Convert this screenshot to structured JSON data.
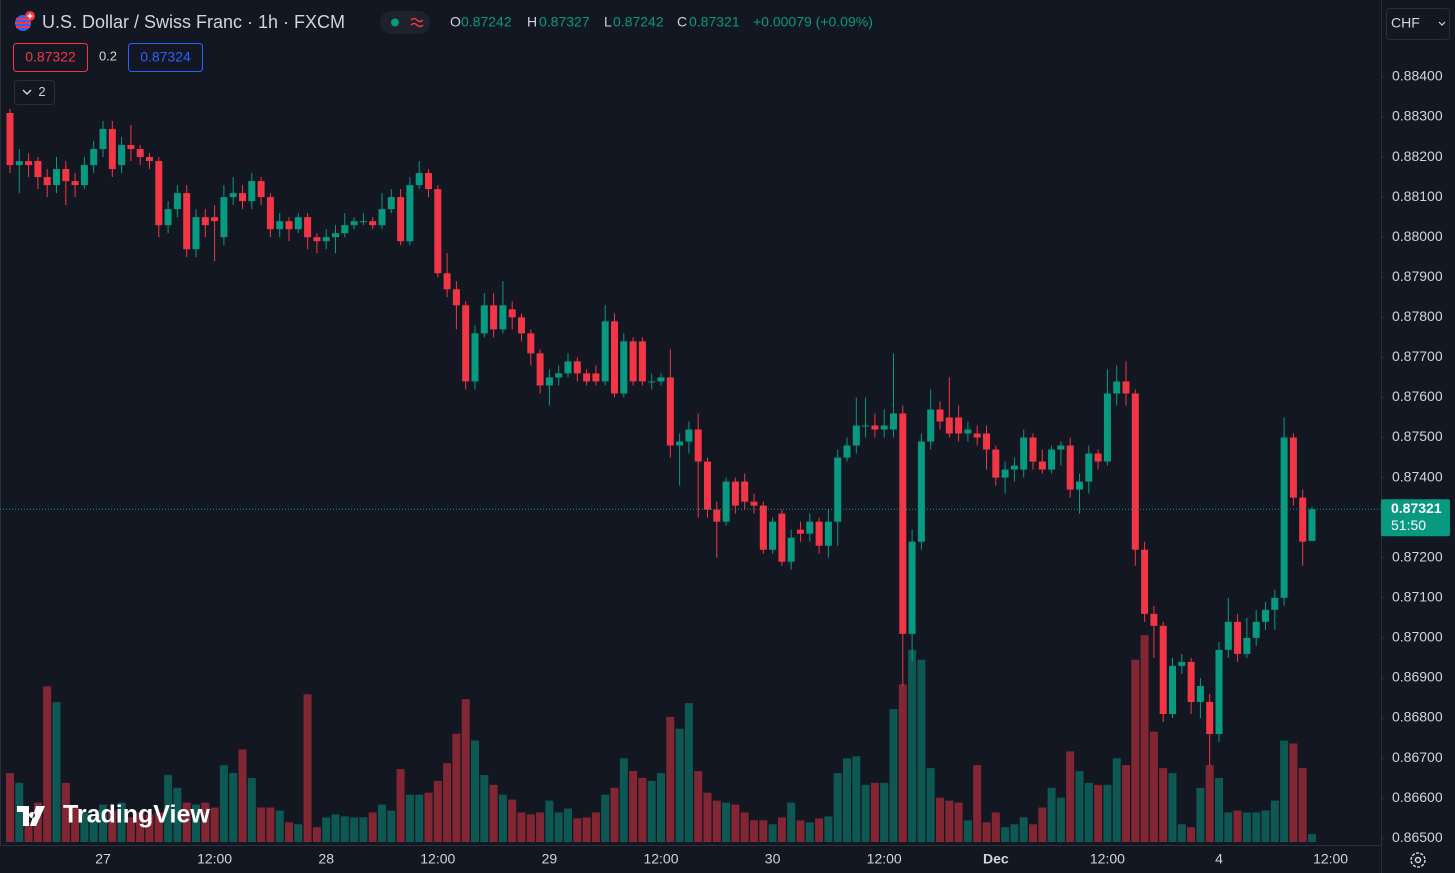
{
  "header": {
    "symbol": "U.S. Dollar / Swiss Franc · 1h · FXCM",
    "ohlc_labels": [
      "O",
      "H",
      "L",
      "C"
    ],
    "change": "+0.00079 (+0.09%)",
    "bid": "0.87322",
    "spread": "0.2",
    "ask": "0.87324",
    "indicators_count": "2",
    "currency": "CHF",
    "countdown": "51:50",
    "logo": "TradingView"
  },
  "chart_data": {
    "type": "candlestick",
    "categories": [
      null,
      null,
      null,
      null,
      null,
      null,
      null,
      null,
      null,
      null,
      "27",
      null,
      null,
      null,
      null,
      null,
      null,
      null,
      null,
      null,
      null,
      null,
      "12:00",
      null,
      null,
      null,
      null,
      null,
      null,
      null,
      null,
      null,
      null,
      null,
      "28",
      null,
      null,
      null,
      null,
      null,
      null,
      null,
      null,
      null,
      null,
      null,
      "12:00",
      null,
      null,
      null,
      null,
      null,
      null,
      null,
      null,
      null,
      null,
      null,
      "29",
      null,
      null,
      null,
      null,
      null,
      null,
      null,
      null,
      null,
      null,
      null,
      "12:00",
      null,
      null,
      null,
      null,
      null,
      null,
      null,
      null,
      null,
      null,
      null,
      "30",
      null,
      null,
      null,
      null,
      null,
      null,
      null,
      null,
      null,
      null,
      null,
      "12:00",
      null,
      null,
      null,
      null,
      null,
      null,
      null,
      null,
      null,
      null,
      null,
      "Dec",
      null,
      null,
      null,
      null,
      null,
      null,
      null,
      null,
      null,
      null,
      null,
      "12:00",
      null,
      null,
      null,
      null,
      null,
      null,
      null,
      null,
      null,
      null,
      null,
      "4",
      null,
      null,
      null,
      null,
      null,
      null,
      null,
      null,
      null,
      null,
      null,
      "12:00"
    ],
    "open": [
      0.8831,
      0.8818,
      0.8819,
      0.8819,
      0.8815,
      0.8813,
      0.8817,
      0.8814,
      0.8813,
      0.8818,
      0.8822,
      0.8827,
      0.8818,
      0.8823,
      0.8822,
      0.882,
      0.8819,
      0.8803,
      0.8807,
      0.8811,
      0.8797,
      0.8805,
      0.8805,
      0.88,
      0.881,
      0.8811,
      0.8809,
      0.8814,
      0.881,
      0.8802,
      0.8804,
      0.8802,
      0.8805,
      0.88,
      0.8799,
      0.88,
      0.8801,
      0.8803,
      0.8804,
      0.8804,
      0.8803,
      0.8807,
      0.881,
      0.8799,
      0.8813,
      0.8816,
      0.8812,
      0.8791,
      0.8787,
      0.8783,
      0.8764,
      0.8776,
      0.8783,
      0.8777,
      0.8782,
      0.878,
      0.8776,
      0.8771,
      0.8763,
      0.8765,
      0.8766,
      0.8769,
      0.8766,
      0.8766,
      0.8764,
      0.8779,
      0.8761,
      0.8774,
      0.8774,
      0.8764,
      0.8764,
      0.8765,
      0.8748,
      0.8749,
      0.8752,
      0.8744,
      0.8732,
      0.8729,
      0.8739,
      0.8739,
      0.8734,
      0.8733,
      0.8722,
      0.8731,
      0.8719,
      0.8727,
      0.8726,
      0.8729,
      0.8723,
      0.8729,
      0.8745,
      0.8748,
      0.8753,
      0.8753,
      0.8752,
      0.8752,
      0.8756,
      0.8701,
      0.8724,
      0.8749,
      0.8757,
      0.8755,
      0.8755,
      0.8751,
      0.8751,
      0.8751,
      0.8747,
      0.874,
      0.8742,
      0.8742,
      0.875,
      0.8744,
      0.8742,
      0.8747,
      0.8748,
      0.8737,
      0.8739,
      0.8746,
      0.8744,
      0.8761,
      0.8764,
      0.8761,
      0.8722,
      0.8706,
      0.8703,
      0.8681,
      0.8693,
      0.8694,
      0.8684,
      0.8684,
      0.8676,
      0.8697,
      0.8704,
      0.8696,
      0.87,
      0.8704,
      0.8707,
      0.871,
      0.875,
      0.8735,
      0.87242,
      null,
      null
    ],
    "high": [
      0.8832,
      0.8822,
      0.8821,
      0.882,
      0.8817,
      0.882,
      0.8819,
      0.8816,
      0.882,
      0.8824,
      0.8829,
      0.8829,
      0.8825,
      0.8828,
      0.8823,
      0.8821,
      0.882,
      0.8809,
      0.8813,
      0.8813,
      0.8807,
      0.8807,
      0.8808,
      0.8813,
      0.8815,
      0.8813,
      0.8816,
      0.8815,
      0.8811,
      0.8806,
      0.8805,
      0.8806,
      0.8806,
      0.8801,
      0.8802,
      0.8803,
      0.8806,
      0.8805,
      0.8806,
      0.8805,
      0.8811,
      0.8812,
      0.8812,
      0.8815,
      0.8819,
      0.8817,
      0.8813,
      0.8796,
      0.8789,
      0.8784,
      0.8778,
      0.8786,
      0.8786,
      0.8789,
      0.8784,
      0.8781,
      0.8777,
      0.8772,
      0.8767,
      0.8768,
      0.8771,
      0.877,
      0.8767,
      0.8768,
      0.8783,
      0.8781,
      0.8776,
      0.8775,
      0.8775,
      0.8766,
      0.8766,
      0.8772,
      0.8751,
      0.8754,
      0.8756,
      0.8745,
      0.8734,
      0.874,
      0.874,
      0.8741,
      0.8736,
      0.8734,
      0.873,
      0.8732,
      0.8727,
      0.8729,
      0.8731,
      0.873,
      0.8732,
      0.8747,
      0.875,
      0.876,
      0.876,
      0.8756,
      0.8757,
      0.8771,
      0.8758,
      0.8727,
      0.8751,
      0.8762,
      0.8759,
      0.8765,
      0.8758,
      0.8754,
      0.8753,
      0.8753,
      0.8748,
      0.8744,
      0.8745,
      0.8752,
      0.8751,
      0.8747,
      0.8748,
      0.8749,
      0.875,
      0.8741,
      0.8748,
      0.8747,
      0.8767,
      0.8768,
      0.8769,
      0.8762,
      0.8724,
      0.8708,
      0.8704,
      0.8695,
      0.8696,
      0.8695,
      0.869,
      0.8686,
      0.8699,
      0.871,
      0.8706,
      0.8705,
      0.8707,
      0.8709,
      0.8712,
      0.8755,
      0.8751,
      0.8737,
      0.87327,
      null,
      null
    ],
    "low": [
      0.8816,
      0.8811,
      0.8815,
      0.8812,
      0.881,
      0.8811,
      0.8808,
      0.881,
      0.8812,
      0.8816,
      0.882,
      0.8815,
      0.8816,
      0.8819,
      0.8818,
      0.8817,
      0.88,
      0.8801,
      0.8805,
      0.8795,
      0.8795,
      0.88,
      0.8794,
      0.8798,
      0.8808,
      0.8807,
      0.8807,
      0.8808,
      0.88,
      0.88,
      0.8799,
      0.8801,
      0.8797,
      0.8796,
      0.8797,
      0.8796,
      0.88,
      0.8802,
      0.8803,
      0.8802,
      0.8802,
      0.8806,
      0.8798,
      0.8798,
      0.8812,
      0.881,
      0.879,
      0.8785,
      0.8777,
      0.8762,
      0.8762,
      0.8775,
      0.8775,
      0.8776,
      0.8777,
      0.8774,
      0.8768,
      0.8761,
      0.8758,
      0.8763,
      0.8765,
      0.8764,
      0.8763,
      0.8763,
      0.8763,
      0.876,
      0.876,
      0.8763,
      0.8763,
      0.8762,
      0.8763,
      0.8745,
      0.8738,
      0.8746,
      0.873,
      0.873,
      0.872,
      0.8728,
      0.8731,
      0.8732,
      0.8731,
      0.8721,
      0.8721,
      0.8718,
      0.8717,
      0.8724,
      0.8724,
      0.8721,
      0.872,
      0.8723,
      0.8744,
      0.8746,
      0.875,
      0.875,
      0.875,
      0.875,
      0.8688,
      0.8694,
      0.8722,
      0.8747,
      0.8752,
      0.875,
      0.8749,
      0.8749,
      0.8748,
      0.8742,
      0.8738,
      0.8736,
      0.8739,
      0.874,
      0.8742,
      0.8741,
      0.8741,
      0.8743,
      0.8735,
      0.8731,
      0.8736,
      0.8742,
      0.8743,
      0.8758,
      0.8758,
      0.8718,
      0.8704,
      0.8695,
      0.8679,
      0.868,
      0.8691,
      0.8681,
      0.868,
      0.8668,
      0.8674,
      0.8695,
      0.8694,
      0.8695,
      0.8698,
      0.8702,
      0.8702,
      0.8708,
      0.8733,
      0.8718,
      0.87242,
      null,
      null
    ],
    "close": [
      0.8818,
      0.8819,
      0.8818,
      0.8815,
      0.8813,
      0.8817,
      0.8814,
      0.8813,
      0.8818,
      0.8822,
      0.8827,
      0.8817,
      0.8823,
      0.8822,
      0.882,
      0.8819,
      0.8803,
      0.8807,
      0.8811,
      0.8797,
      0.8805,
      0.8803,
      0.8804,
      0.881,
      0.8811,
      0.8809,
      0.8814,
      0.881,
      0.8802,
      0.8804,
      0.8802,
      0.8805,
      0.88,
      0.8799,
      0.88,
      0.8801,
      0.8803,
      0.8804,
      0.8804,
      0.8803,
      0.8807,
      0.881,
      0.8799,
      0.8813,
      0.8816,
      0.8812,
      0.8791,
      0.8787,
      0.8783,
      0.8764,
      0.8776,
      0.8783,
      0.8777,
      0.8783,
      0.878,
      0.8776,
      0.8771,
      0.8763,
      0.8765,
      0.8766,
      0.8769,
      0.8766,
      0.8764,
      0.8764,
      0.8779,
      0.8761,
      0.8774,
      0.8764,
      0.8764,
      0.8764,
      0.8765,
      0.8748,
      0.8749,
      0.8752,
      0.8744,
      0.8732,
      0.8729,
      0.8739,
      0.8733,
      0.8734,
      0.8733,
      0.8722,
      0.8729,
      0.8719,
      0.8725,
      0.8726,
      0.8729,
      0.8723,
      0.8729,
      0.8745,
      0.8748,
      0.8753,
      0.8753,
      0.8752,
      0.8753,
      0.8756,
      0.8701,
      0.8724,
      0.8749,
      0.8757,
      0.8754,
      0.8751,
      0.8751,
      0.8752,
      0.875,
      0.8747,
      0.874,
      0.8742,
      0.8743,
      0.875,
      0.8744,
      0.8742,
      0.8747,
      0.8748,
      0.8737,
      0.8739,
      0.8746,
      0.8744,
      0.8761,
      0.8764,
      0.8761,
      0.8722,
      0.8706,
      0.8703,
      0.8681,
      0.8693,
      0.8694,
      0.8684,
      0.8688,
      0.8676,
      0.8697,
      0.8704,
      0.8696,
      0.87,
      0.8704,
      0.8707,
      0.871,
      0.875,
      0.8735,
      0.8724,
      0.87321,
      null,
      null
    ],
    "volume": [
      70,
      60,
      20,
      40,
      158,
      142,
      60,
      35,
      30,
      25,
      38,
      32,
      40,
      25,
      30,
      28,
      30,
      68,
      55,
      40,
      38,
      40,
      35,
      78,
      70,
      94,
      65,
      35,
      35,
      32,
      20,
      18,
      150,
      15,
      25,
      28,
      26,
      25,
      25,
      30,
      38,
      32,
      74,
      48,
      48,
      50,
      62,
      80,
      110,
      145,
      103,
      68,
      58,
      48,
      43,
      30,
      28,
      30,
      42,
      30,
      34,
      24,
      25,
      30,
      48,
      55,
      85,
      72,
      65,
      62,
      70,
      127,
      115,
      141,
      72,
      50,
      42,
      40,
      38,
      30,
      22,
      22,
      18,
      25,
      40,
      22,
      20,
      24,
      26,
      70,
      85,
      87,
      58,
      60,
      60,
      135,
      160,
      195,
      185,
      75,
      45,
      42,
      40,
      22,
      78,
      20,
      30,
      15,
      18,
      25,
      18,
      35,
      55,
      45,
      92,
      72,
      60,
      58,
      58,
      85,
      78,
      185,
      210,
      112,
      75,
      70,
      18,
      15,
      55,
      78,
      65,
      30,
      32,
      30,
      30,
      32,
      42,
      103,
      100,
      75,
      8,
      null,
      null
    ],
    "up_color": "#089981",
    "down_color": "#f23645",
    "ylim": [
      0.86483,
      0.88592
    ],
    "yticks": [
      {
        "value": 0.884,
        "label": "0.88400"
      },
      {
        "value": 0.883,
        "label": "0.88300"
      },
      {
        "value": 0.882,
        "label": "0.88200"
      },
      {
        "value": 0.881,
        "label": "0.88100"
      },
      {
        "value": 0.88,
        "label": "0.88000"
      },
      {
        "value": 0.879,
        "label": "0.87900"
      },
      {
        "value": 0.878,
        "label": "0.87800"
      },
      {
        "value": 0.877,
        "label": "0.87700"
      },
      {
        "value": 0.876,
        "label": "0.87600"
      },
      {
        "value": 0.875,
        "label": "0.87500"
      },
      {
        "value": 0.874,
        "label": "0.87400"
      },
      {
        "value": 0.872,
        "label": "0.87200"
      },
      {
        "value": 0.871,
        "label": "0.87100"
      },
      {
        "value": 0.87,
        "label": "0.87000"
      },
      {
        "value": 0.869,
        "label": "0.86900"
      },
      {
        "value": 0.868,
        "label": "0.86800"
      },
      {
        "value": 0.867,
        "label": "0.86700"
      },
      {
        "value": 0.866,
        "label": "0.86600"
      },
      {
        "value": 0.865,
        "label": "0.86500"
      }
    ],
    "volume_lim": [
      0,
      200
    ],
    "grid": false
  }
}
